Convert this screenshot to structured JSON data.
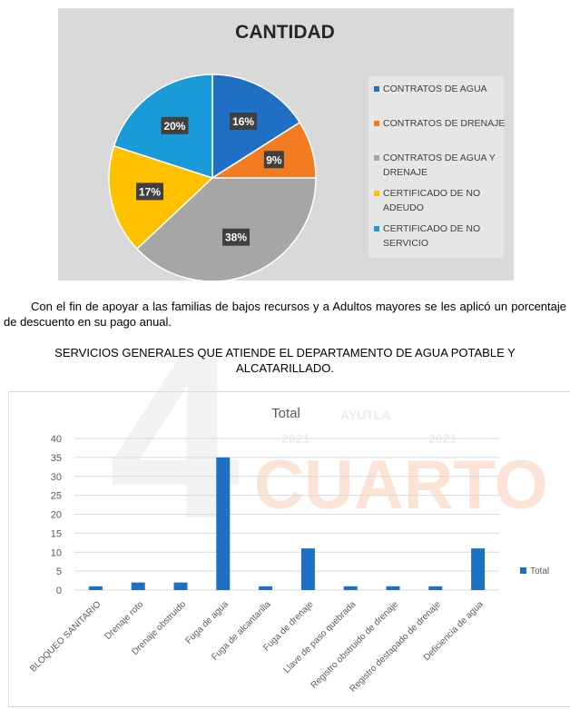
{
  "pie_chart": {
    "title": "CANTIDAD",
    "slices": [
      {
        "label": "CONTRATOS DE AGUA",
        "value_label": "16%",
        "percent": 16,
        "color": "#1f6fc5"
      },
      {
        "label": "CONTRATOS DE DRENAJE",
        "value_label": "9%",
        "percent": 9,
        "color": "#f47c20"
      },
      {
        "label": "CONTRATOS DE AGUA Y DRENAJE",
        "value_label": "38%",
        "percent": 38,
        "color": "#a6a6a6"
      },
      {
        "label": "CERTIFICADO DE NO ADEUDO",
        "value_label": "17%",
        "percent": 17,
        "color": "#ffc000"
      },
      {
        "label": "CERTIFICADO DE NO SERVICIO",
        "value_label": "20%",
        "percent": 20,
        "color": "#1a9ad9"
      }
    ]
  },
  "paragraph": "Con el fin de apoyar a las familias de bajos recursos y a Adultos mayores se les aplicó un porcentaje de descuento en su pago anual.",
  "section_title": "SERVICIOS GENERALES QUE ATIENDE EL DEPARTAMENTO DE AGUA POTABLE Y ALCATARILLADO.",
  "watermark": {
    "year_left": "2021",
    "town": "AYUTLA",
    "year_right": "2021",
    "word": "CUARTO",
    "numeral": "4"
  },
  "chart_data": [
    {
      "type": "pie",
      "title": "CANTIDAD",
      "categories": [
        "CONTRATOS DE AGUA",
        "CONTRATOS DE DRENAJE",
        "CONTRATOS DE AGUA Y DRENAJE",
        "CERTIFICADO DE NO ADEUDO",
        "CERTIFICADO DE NO SERVICIO"
      ],
      "values": [
        16,
        9,
        38,
        17,
        20
      ],
      "legend": "right"
    },
    {
      "type": "bar",
      "title": "Total",
      "categories": [
        "BLOQUEO SANITARIO",
        "Drenaje roto",
        "Drenaje obstruido",
        "Fuga de agua",
        "Fuga de alcantarilla",
        "Fuga de drenaje",
        "Llave de paso quebrada",
        "Registro obstruido de drenaje",
        "Registro destapado de drenaje",
        "Deficiencia de agua"
      ],
      "series": [
        {
          "name": "Total",
          "values": [
            1,
            2,
            2,
            35,
            1,
            11,
            1,
            1,
            1,
            11
          ],
          "color": "#1f6fc5"
        }
      ],
      "ylim": [
        0,
        40
      ],
      "yticks": [
        0,
        5,
        10,
        15,
        20,
        25,
        30,
        35,
        40
      ],
      "grid": true,
      "legend": "right"
    }
  ]
}
